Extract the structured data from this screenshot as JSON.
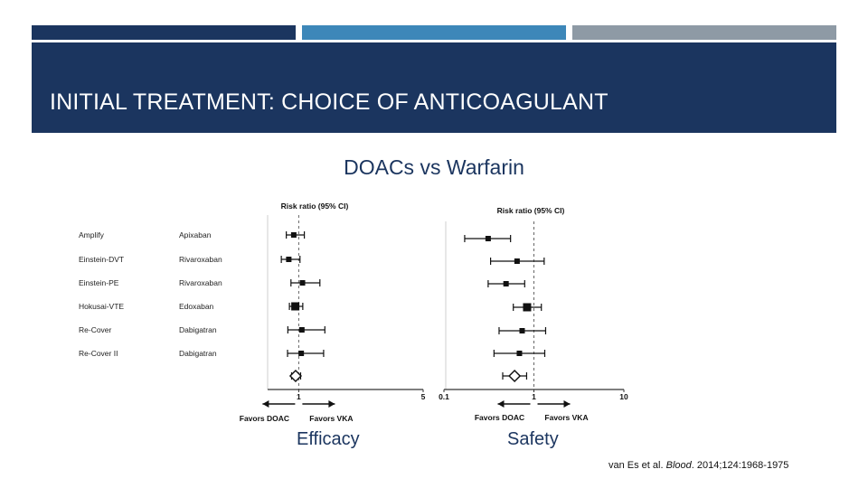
{
  "slide": {
    "title": "INITIAL TREATMENT: CHOICE OF ANTICOAGULANT",
    "subtitle": "DOACs vs Warfarin",
    "accent_colors": [
      "#1b355f",
      "#3d87b9",
      "#8e9aa5"
    ],
    "caption_left": "Efficacy",
    "caption_right": "Safety",
    "citation": {
      "authors": "van Es et al.",
      "journal": "Blood",
      "details": "2014;124:1968-1975"
    }
  },
  "chart_data": [
    {
      "type": "forest",
      "panel": "Efficacy",
      "header": "Risk ratio (95% CI)",
      "scale": "linear",
      "xlim": [
        0,
        5
      ],
      "ticks": [
        "1",
        "5"
      ],
      "reference_line": 1,
      "favors_left": "Favors DOAC",
      "favors_right": "Favors VKA",
      "studies": [
        {
          "trial": "Amplify",
          "drug": "Apixaban",
          "rr": 0.84,
          "lo": 0.6,
          "hi": 1.18
        },
        {
          "trial": "Einstein-DVT",
          "drug": "Rivaroxaban",
          "rr": 0.68,
          "lo": 0.44,
          "hi": 1.04
        },
        {
          "trial": "Einstein-PE",
          "drug": "Rivaroxaban",
          "rr": 1.12,
          "lo": 0.75,
          "hi": 1.68
        },
        {
          "trial": "Hokusai-VTE",
          "drug": "Edoxaban",
          "rr": 0.89,
          "lo": 0.7,
          "hi": 1.13
        },
        {
          "trial": "Re-Cover",
          "drug": "Dabigatran",
          "rr": 1.1,
          "lo": 0.65,
          "hi": 1.84
        },
        {
          "trial": "Re-Cover II",
          "drug": "Dabigatran",
          "rr": 1.08,
          "lo": 0.64,
          "hi": 1.8
        }
      ],
      "pooled": {
        "rr": 0.9,
        "lo": 0.77,
        "hi": 1.06
      }
    },
    {
      "type": "forest",
      "panel": "Safety",
      "header": "Risk ratio (95% CI)",
      "scale": "log",
      "xlim": [
        0.1,
        10
      ],
      "ticks": [
        "0.1",
        "1",
        "10"
      ],
      "reference_line": 1,
      "favors_left": "Favors DOAC",
      "favors_right": "Favors VKA",
      "studies": [
        {
          "trial": "Amplify",
          "drug": "Apixaban",
          "rr": 0.31,
          "lo": 0.17,
          "hi": 0.55
        },
        {
          "trial": "Einstein-DVT",
          "drug": "Rivaroxaban",
          "rr": 0.65,
          "lo": 0.33,
          "hi": 1.3
        },
        {
          "trial": "Einstein-PE",
          "drug": "Rivaroxaban",
          "rr": 0.49,
          "lo": 0.31,
          "hi": 0.79
        },
        {
          "trial": "Hokusai-VTE",
          "drug": "Edoxaban",
          "rr": 0.84,
          "lo": 0.59,
          "hi": 1.21
        },
        {
          "trial": "Re-Cover",
          "drug": "Dabigatran",
          "rr": 0.74,
          "lo": 0.41,
          "hi": 1.35
        },
        {
          "trial": "Re-Cover II",
          "drug": "Dabigatran",
          "rr": 0.69,
          "lo": 0.36,
          "hi": 1.32
        }
      ],
      "pooled": {
        "rr": 0.61,
        "lo": 0.45,
        "hi": 0.83
      }
    }
  ]
}
